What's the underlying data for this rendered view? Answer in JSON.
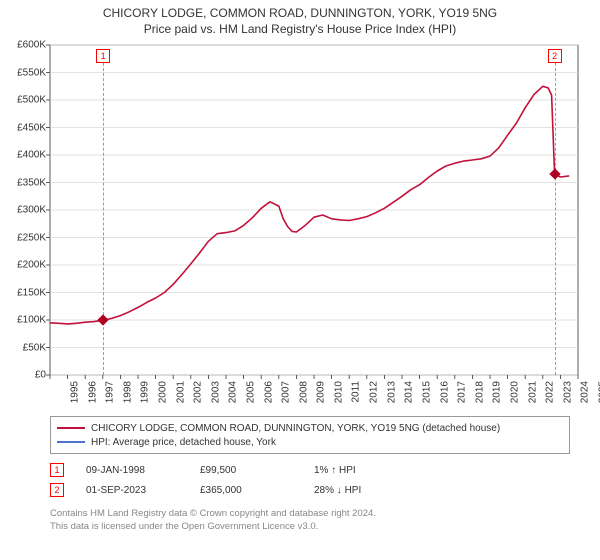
{
  "title": "CHICORY LODGE, COMMON ROAD, DUNNINGTON, YORK, YO19 5NG",
  "subtitle": "Price paid vs. HM Land Registry's House Price Index (HPI)",
  "chart": {
    "type": "line",
    "background_color": "#ffffff",
    "grid_color": "#d9d9d9",
    "axis_color": "#333333",
    "axis_label_fontsize": 10,
    "title_fontsize": 12,
    "xlim": [
      1995,
      2025
    ],
    "xticks": [
      1995,
      1996,
      1997,
      1998,
      1999,
      2000,
      2001,
      2002,
      2003,
      2004,
      2005,
      2006,
      2007,
      2008,
      2009,
      2010,
      2011,
      2012,
      2013,
      2014,
      2015,
      2016,
      2017,
      2018,
      2019,
      2020,
      2021,
      2022,
      2023,
      2024,
      2025
    ],
    "ylim": [
      0,
      600000
    ],
    "yticks": [
      0,
      50000,
      100000,
      150000,
      200000,
      250000,
      300000,
      350000,
      400000,
      450000,
      500000,
      550000,
      600000
    ],
    "ytick_labels": [
      "£0",
      "£50K",
      "£100K",
      "£150K",
      "£200K",
      "£250K",
      "£300K",
      "£350K",
      "£400K",
      "£450K",
      "£500K",
      "£550K",
      "£600K"
    ],
    "series": [
      {
        "name": "CHICORY LODGE, COMMON ROAD, DUNNINGTON, YORK, YO19 5NG (detached house)",
        "color": "#c2113a",
        "line_width": 1.6,
        "data": [
          [
            1995.0,
            95000
          ],
          [
            1995.5,
            94000
          ],
          [
            1996.0,
            93000
          ],
          [
            1996.5,
            94000
          ],
          [
            1997.0,
            96000
          ],
          [
            1997.5,
            97000
          ],
          [
            1998.02,
            99500
          ],
          [
            1998.5,
            103000
          ],
          [
            1999.0,
            108000
          ],
          [
            1999.5,
            115000
          ],
          [
            2000.0,
            123000
          ],
          [
            2000.5,
            132000
          ],
          [
            2001.0,
            140000
          ],
          [
            2001.5,
            150000
          ],
          [
            2002.0,
            165000
          ],
          [
            2002.5,
            183000
          ],
          [
            2003.0,
            202000
          ],
          [
            2003.5,
            222000
          ],
          [
            2004.0,
            243000
          ],
          [
            2004.5,
            257000
          ],
          [
            2005.0,
            259000
          ],
          [
            2005.5,
            262000
          ],
          [
            2006.0,
            272000
          ],
          [
            2006.5,
            286000
          ],
          [
            2007.0,
            303000
          ],
          [
            2007.5,
            315000
          ],
          [
            2008.0,
            307000
          ],
          [
            2008.25,
            284000
          ],
          [
            2008.5,
            270000
          ],
          [
            2008.75,
            261000
          ],
          [
            2009.0,
            260000
          ],
          [
            2009.5,
            272000
          ],
          [
            2010.0,
            287000
          ],
          [
            2010.5,
            291000
          ],
          [
            2011.0,
            284000
          ],
          [
            2011.5,
            282000
          ],
          [
            2012.0,
            281000
          ],
          [
            2012.5,
            284000
          ],
          [
            2013.0,
            288000
          ],
          [
            2013.5,
            295000
          ],
          [
            2014.0,
            303000
          ],
          [
            2014.5,
            314000
          ],
          [
            2015.0,
            325000
          ],
          [
            2015.5,
            337000
          ],
          [
            2016.0,
            346000
          ],
          [
            2016.5,
            359000
          ],
          [
            2017.0,
            371000
          ],
          [
            2017.5,
            380000
          ],
          [
            2018.0,
            385000
          ],
          [
            2018.5,
            389000
          ],
          [
            2019.0,
            391000
          ],
          [
            2019.5,
            393000
          ],
          [
            2020.0,
            398000
          ],
          [
            2020.5,
            413000
          ],
          [
            2021.0,
            436000
          ],
          [
            2021.5,
            458000
          ],
          [
            2022.0,
            486000
          ],
          [
            2022.5,
            510000
          ],
          [
            2023.0,
            525000
          ],
          [
            2023.3,
            522000
          ],
          [
            2023.5,
            509000
          ],
          [
            2023.67,
            365000
          ],
          [
            2024.0,
            360000
          ],
          [
            2024.5,
            362000
          ]
        ]
      },
      {
        "name": "HPI: Average price, detached house, York",
        "color": "#4a74c9",
        "line_width": 1.2,
        "data": []
      }
    ],
    "markers": [
      {
        "id": "1",
        "x": 1998.02,
        "y": 99500,
        "date": "09-JAN-1998",
        "price": "£99,500",
        "hpi_delta": "1% ↑ HPI"
      },
      {
        "id": "2",
        "x": 2023.67,
        "y": 365000,
        "date": "01-SEP-2023",
        "price": "£365,000",
        "hpi_delta": "28% ↓ HPI"
      }
    ]
  },
  "legend": {
    "rows": [
      {
        "color": "#c2113a",
        "label": "CHICORY LODGE, COMMON ROAD, DUNNINGTON, YORK, YO19 5NG (detached house)"
      },
      {
        "color": "#4a74c9",
        "label": "HPI: Average price, detached house, York"
      }
    ]
  },
  "footer": {
    "line1": "Contains HM Land Registry data © Crown copyright and database right 2024.",
    "line2": "This data is licensed under the Open Government Licence v3.0."
  }
}
